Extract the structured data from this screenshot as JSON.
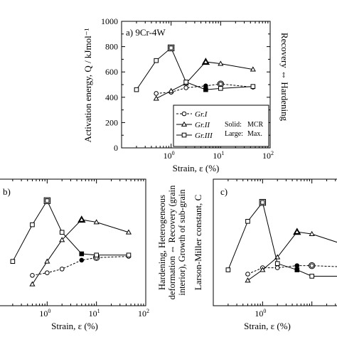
{
  "chart_data": [
    {
      "type": "line",
      "panel": "a",
      "title": "a) 9Cr-4W",
      "xlabel": "Strain, ε (%)",
      "ylabel": "Activation energy, Q / kJmol⁻¹",
      "ylabel_right": "Recovery ⇔ Hardening",
      "xscale": "log",
      "xlim": [
        0.1,
        100
      ],
      "ylim": [
        0,
        1000
      ],
      "yticks": [
        "0",
        "200",
        "400",
        "600",
        "800",
        "1000"
      ],
      "xticks": [
        "10⁰",
        "10¹",
        "10²"
      ],
      "legend": {
        "placement": "bottom-right",
        "entries": [
          "Gr.I",
          "Gr.II",
          "Gr.III"
        ],
        "note": [
          "Solid:",
          "MCR",
          "Large:",
          "Max."
        ]
      },
      "series": [
        {
          "name": "Gr.I",
          "marker": "circle",
          "dash": true,
          "x": [
            0.5,
            1,
            2,
            5,
            10,
            45
          ],
          "y": [
            430,
            440,
            475,
            490,
            505,
            480
          ],
          "solid_index": [
            3
          ],
          "large_index": [
            4
          ]
        },
        {
          "name": "Gr.II",
          "marker": "triangle",
          "dash": false,
          "x": [
            0.5,
            1,
            2,
            5,
            10,
            45
          ],
          "y": [
            390,
            450,
            510,
            680,
            665,
            620
          ],
          "solid_index": [
            3
          ],
          "large_index": [
            3
          ]
        },
        {
          "name": "Gr.III",
          "marker": "square",
          "dash": false,
          "x": [
            0.2,
            0.5,
            1,
            2,
            5,
            10,
            45
          ],
          "y": [
            460,
            690,
            790,
            520,
            460,
            470,
            485
          ],
          "solid_index": [
            4
          ],
          "large_index": [
            2
          ]
        }
      ]
    },
    {
      "type": "line",
      "panel": "b",
      "title": "b)",
      "xlabel": "Strain, ε (%)",
      "ylabel": "Hardening, Heterogeneous deformation ⇔ Recovery (grain interior), Growth of sub-grain",
      "xscale": "log",
      "xlim": [
        0.1,
        100
      ],
      "xticks": [
        "10⁰",
        "10¹",
        "10²"
      ],
      "series": [
        {
          "name": "Gr.I",
          "marker": "circle",
          "dash": true,
          "x": [
            0.5,
            1,
            2,
            5,
            10,
            45
          ],
          "y": [
            0.24,
            0.26,
            0.29,
            0.36,
            0.38,
            0.39
          ],
          "solid_index": [
            3
          ],
          "large_index": [
            4
          ]
        },
        {
          "name": "Gr.II",
          "marker": "triangle",
          "dash": false,
          "x": [
            0.5,
            1,
            2,
            5,
            10,
            45
          ],
          "y": [
            0.17,
            0.35,
            0.52,
            0.68,
            0.66,
            0.58
          ],
          "solid_index": [
            3
          ],
          "large_index": [
            3
          ]
        },
        {
          "name": "Gr.III",
          "marker": "square",
          "dash": false,
          "x": [
            0.2,
            0.5,
            1,
            2,
            5,
            10,
            45
          ],
          "y": [
            0.35,
            0.64,
            0.83,
            0.58,
            0.41,
            0.4,
            0.4
          ],
          "solid_index": [
            4
          ],
          "large_index": [
            2
          ]
        }
      ]
    },
    {
      "type": "line",
      "panel": "c",
      "title": "c)",
      "xlabel": "Strain, ε (%)",
      "ylabel": "Larson-Miller constant, C",
      "xscale": "log",
      "xlim": [
        0.1,
        100
      ],
      "xticks": [
        "10⁰"
      ],
      "series": [
        {
          "name": "Gr.I",
          "marker": "circle",
          "dash": true,
          "x": [
            0.5,
            1,
            2,
            5,
            10,
            45
          ],
          "y": [
            22.5,
            24,
            24,
            24.5,
            24.5,
            24.2
          ],
          "solid_index": [
            3
          ],
          "large_index": [
            4
          ]
        },
        {
          "name": "Gr.II",
          "marker": "triangle",
          "dash": false,
          "x": [
            0.5,
            1,
            2,
            5,
            10,
            45
          ],
          "y": [
            21,
            23.5,
            26.5,
            32.5,
            32,
            29.5
          ],
          "solid_index": [
            3
          ],
          "large_index": [
            3
          ]
        },
        {
          "name": "Gr.III",
          "marker": "square",
          "dash": false,
          "x": [
            0.2,
            0.5,
            1,
            2,
            5,
            10,
            45
          ],
          "y": [
            23.5,
            35,
            39.5,
            25,
            23.5,
            22,
            22
          ],
          "solid_index": [
            4
          ],
          "large_index": [
            2
          ]
        }
      ]
    }
  ]
}
